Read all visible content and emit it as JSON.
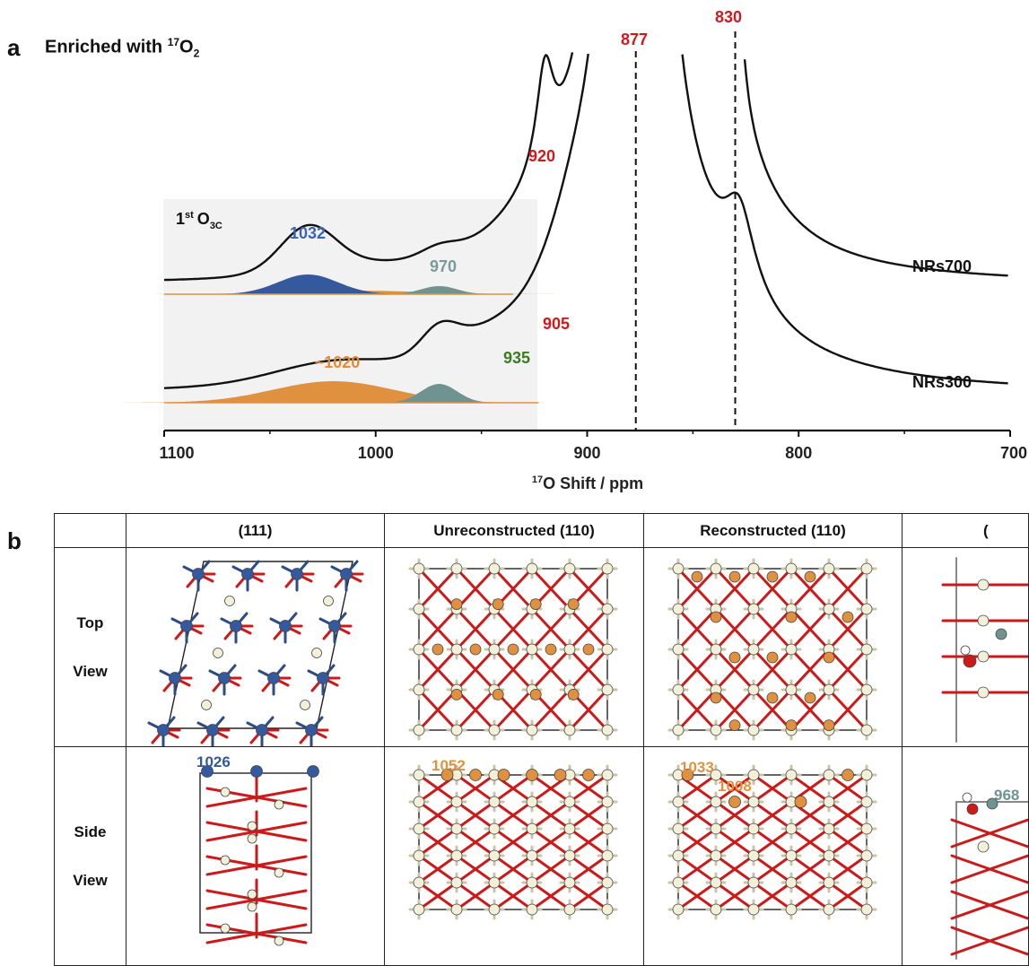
{
  "panel_a": {
    "label": "a",
    "title_prefix": "Enriched with ",
    "title_iso": "17",
    "title_o": "O",
    "title_sub": "2",
    "inset_label_prefix": "1",
    "inset_label_sup": "st",
    "inset_label_o": "O",
    "inset_label_sub": "3C",
    "peak_labels": [
      {
        "text": "877",
        "color": "#d0191f"
      },
      {
        "text": "830",
        "color": "#d0191f"
      },
      {
        "text": "920",
        "color": "#d0191f"
      },
      {
        "text": "905",
        "color": "#d0191f"
      },
      {
        "text": "1032",
        "color": "#3c64b0"
      },
      {
        "text": "970",
        "color": "#7a9a98"
      },
      {
        "text": "~1020",
        "color": "#e08c3a"
      },
      {
        "text": "935",
        "color": "#3a7d1e"
      }
    ],
    "series_labels": [
      "NRs700",
      "NRs300"
    ],
    "xlabel_iso": "17",
    "xlabel_rest": "O Shift / ppm",
    "colors": {
      "blue": "#34599f",
      "orange": "#e0913f",
      "teal": "#6f9390",
      "red": "#d0191f",
      "green": "#3a7d1e",
      "inset_bg": "#f2f2f2"
    }
  },
  "chart_data": {
    "type": "line",
    "xlabel": "17O Shift / ppm",
    "xlim": [
      1100,
      700
    ],
    "x_reversed": true,
    "x_ticks": [
      "1100",
      "1000",
      "900",
      "800",
      "700"
    ],
    "reference_lines_ppm": [
      877,
      830
    ],
    "series": [
      {
        "name": "NRs700",
        "peaks_ppm": [
          1032,
          970,
          920,
          877,
          830
        ]
      },
      {
        "name": "NRs300",
        "peaks_ppm": [
          1020,
          970,
          935,
          905,
          877,
          830
        ]
      }
    ],
    "deconvolution_components": [
      {
        "series": "NRs700",
        "center_ppm": 1032,
        "color": "#34599f"
      },
      {
        "series": "NRs700",
        "center_ppm": 970,
        "color": "#6f9390"
      },
      {
        "series": "NRs300",
        "center_ppm": 1020,
        "color": "#e0913f"
      },
      {
        "series": "NRs300",
        "center_ppm": 970,
        "color": "#6f9390"
      }
    ]
  },
  "panel_b": {
    "label": "b",
    "columns": [
      "(111)",
      "Unreconstructed (110)",
      "Reconstructed (110)",
      "("
    ],
    "rows": [
      {
        "label_line1": "Top",
        "label_line2": "View"
      },
      {
        "label_line1": "Side",
        "label_line2": "View"
      }
    ],
    "side_labels": [
      {
        "text": "1026",
        "color": "#34599f"
      },
      {
        "text": "1052",
        "color": "#e0913f"
      },
      {
        "text": "1033",
        "color": "#e0913f"
      },
      {
        "text": "1008",
        "color": "#e0913f"
      },
      {
        "text": "968",
        "color": "#6f9390"
      }
    ]
  }
}
